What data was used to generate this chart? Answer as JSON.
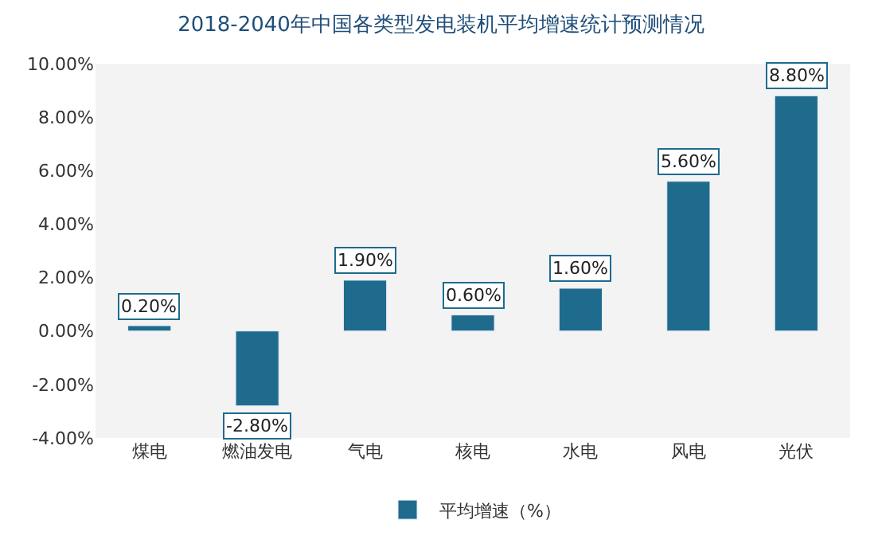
{
  "chart_data": {
    "type": "bar",
    "title": "2018-2040年中国各类型发电装机平均增速统计预测情况",
    "categories": [
      "煤电",
      "燃油发电",
      "气电",
      "核电",
      "水电",
      "风电",
      "光伏"
    ],
    "series": [
      {
        "name": "平均增速（%）",
        "color": "#1f6b8e",
        "values": [
          0.2,
          -2.8,
          1.9,
          0.6,
          1.6,
          5.6,
          8.8
        ]
      }
    ],
    "value_labels": [
      "0.20%",
      "-2.80%",
      "1.90%",
      "0.60%",
      "1.60%",
      "5.60%",
      "8.80%"
    ],
    "ylim": [
      -4,
      10
    ],
    "yticks": [
      {
        "value": -4,
        "label": "-4.00%"
      },
      {
        "value": -2,
        "label": "-2.00%"
      },
      {
        "value": 0,
        "label": "0.00%"
      },
      {
        "value": 2,
        "label": "2.00%"
      },
      {
        "value": 4,
        "label": "4.00%"
      },
      {
        "value": 6,
        "label": "6.00%"
      },
      {
        "value": 8,
        "label": "8.00%"
      },
      {
        "value": 10,
        "label": "10.00%"
      }
    ],
    "grid": false,
    "legend": "bottom"
  }
}
